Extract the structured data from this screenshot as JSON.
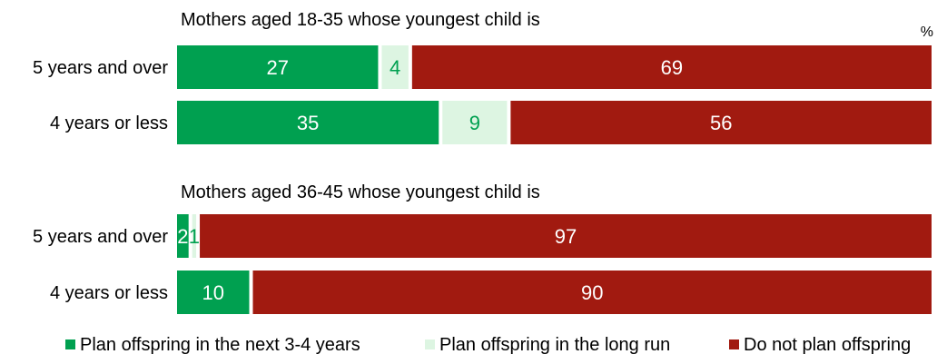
{
  "chart_data": {
    "type": "bar",
    "orientation": "horizontal",
    "stacked": true,
    "unit_label": "%",
    "xlim": [
      0,
      100
    ],
    "grid": false,
    "legend_position": "bottom",
    "series": [
      {
        "name": "Plan offspring in the next 3-4 years",
        "color": "#00A050",
        "label_color": "#ffffff"
      },
      {
        "name": "Plan offspring in the long run",
        "color": "#DDF5E2",
        "label_color": "#00A050"
      },
      {
        "name": "Do not plan offspring",
        "color": "#A11A10",
        "label_color": "#ffffff"
      }
    ],
    "groups": [
      {
        "title": "Mothers aged 18-35 whose youngest child is",
        "categories": [
          "5 years and over",
          "4 years or less"
        ],
        "values": [
          [
            27,
            4,
            69
          ],
          [
            35,
            9,
            56
          ]
        ]
      },
      {
        "title": "Mothers aged 36-45 whose youngest child is",
        "categories": [
          "5 years and over",
          "4 years or less"
        ],
        "values": [
          [
            2,
            1,
            97
          ],
          [
            10,
            0,
            90
          ]
        ]
      }
    ]
  }
}
